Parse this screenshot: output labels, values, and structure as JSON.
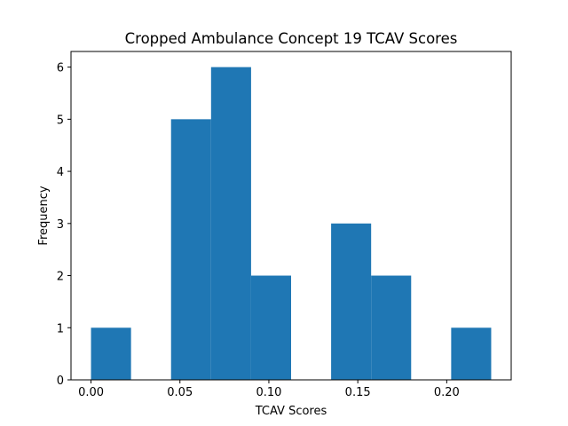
{
  "chart_data": {
    "type": "bar",
    "title": "Cropped Ambulance Concept 19 TCAV Scores",
    "xlabel": "TCAV Scores",
    "ylabel": "Frequency",
    "bin_edges": [
      0.0,
      0.0225,
      0.045,
      0.0675,
      0.09,
      0.1125,
      0.135,
      0.1575,
      0.18,
      0.2025,
      0.225
    ],
    "values": [
      1,
      0,
      5,
      6,
      2,
      0,
      3,
      2,
      0,
      1
    ],
    "xlim": [
      -0.01125,
      0.23625
    ],
    "ylim": [
      0,
      6.3
    ],
    "xticks": [
      0.0,
      0.05,
      0.1,
      0.15,
      0.2
    ],
    "xtick_labels": [
      "0.00",
      "0.05",
      "0.10",
      "0.15",
      "0.20"
    ],
    "yticks": [
      0,
      1,
      2,
      3,
      4,
      5,
      6
    ],
    "ytick_labels": [
      "0",
      "1",
      "2",
      "3",
      "4",
      "5",
      "6"
    ],
    "bar_color": "#1f77b4",
    "grid": false,
    "legend": "none"
  }
}
